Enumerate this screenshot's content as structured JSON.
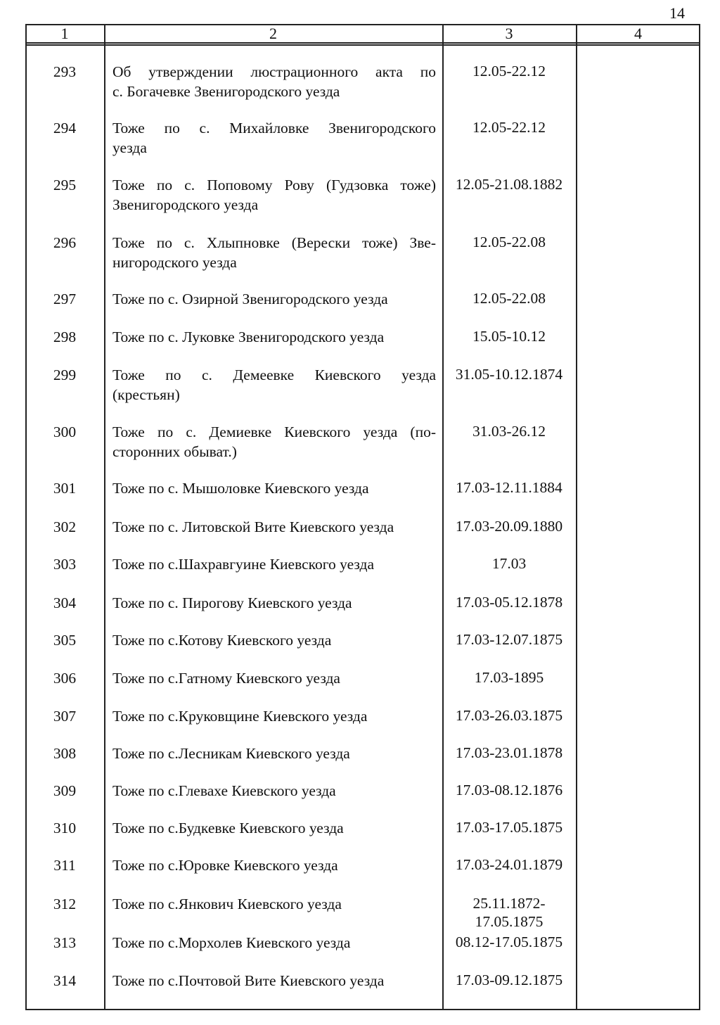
{
  "page_number": "14",
  "table": {
    "headers": [
      "1",
      "2",
      "3",
      "4"
    ],
    "rows": [
      {
        "num": "293",
        "desc": [
          "Об утверждении люстрационного акта по",
          "с. Богачевке Звенигородского уезда"
        ],
        "dates": [
          "12.05-22.12"
        ],
        "note": ""
      },
      {
        "num": "294",
        "desc": [
          "Тоже по с. Михайловке Звенигородского",
          "уезда"
        ],
        "dates": [
          "12.05-22.12"
        ],
        "note": ""
      },
      {
        "num": "295",
        "desc": [
          "Тоже по с. Поповому Рову (Гудзовка тоже)",
          "Звенигородского уезда"
        ],
        "dates": [
          "12.05-21.08.1882"
        ],
        "note": ""
      },
      {
        "num": "296",
        "desc": [
          "Тоже по с. Хлыпновке (Верески тоже) Зве-",
          "нигородского уезда"
        ],
        "dates": [
          "12.05-22.08"
        ],
        "note": ""
      },
      {
        "num": "297",
        "desc": [
          "Тоже по с. Озирной Звенигородского уезда"
        ],
        "dates": [
          "12.05-22.08"
        ],
        "note": ""
      },
      {
        "num": "298",
        "desc": [
          "Тоже по с. Луковке Звенигородского уезда"
        ],
        "dates": [
          "15.05-10.12"
        ],
        "note": ""
      },
      {
        "num": "299",
        "desc": [
          "Тоже по с. Демеевке Киевского уезда",
          "(крестьян)"
        ],
        "dates": [
          "31.05-10.12.1874"
        ],
        "note": ""
      },
      {
        "num": "300",
        "desc": [
          "Тоже по с. Демиевке Киевского уезда (по-",
          "сторонних обыват.)"
        ],
        "dates": [
          "31.03-26.12"
        ],
        "note": ""
      },
      {
        "num": "301",
        "desc": [
          "Тоже по с. Мышоловке Киевского уезда"
        ],
        "dates": [
          "17.03-12.11.1884"
        ],
        "note": ""
      },
      {
        "num": "302",
        "desc": [
          "Тоже по с. Литовской Вите Киевского уезда"
        ],
        "dates": [
          "17.03-20.09.1880"
        ],
        "note": ""
      },
      {
        "num": "303",
        "desc": [
          "Тоже по с.Шахравгуине Киевского уезда"
        ],
        "dates": [
          "17.03"
        ],
        "note": ""
      },
      {
        "num": "304",
        "desc": [
          "Тоже по с. Пирогову Киевского уезда"
        ],
        "dates": [
          "17.03-05.12.1878"
        ],
        "note": ""
      },
      {
        "num": "305",
        "desc": [
          "Тоже по с.Котову Киевского уезда"
        ],
        "dates": [
          "17.03-12.07.1875"
        ],
        "note": ""
      },
      {
        "num": "306",
        "desc": [
          "Тоже по с.Гатному Киевского уезда"
        ],
        "dates": [
          "17.03-1895"
        ],
        "note": ""
      },
      {
        "num": "307",
        "desc": [
          "Тоже по с.Круковщине Киевского уезда"
        ],
        "dates": [
          "17.03-26.03.1875"
        ],
        "note": ""
      },
      {
        "num": "308",
        "desc": [
          "Тоже по с.Лесникам Киевского уезда"
        ],
        "dates": [
          "17.03-23.01.1878"
        ],
        "note": ""
      },
      {
        "num": "309",
        "desc": [
          "Тоже по с.Глевахе Киевского уезда"
        ],
        "dates": [
          "17.03-08.12.1876"
        ],
        "note": ""
      },
      {
        "num": "310",
        "desc": [
          "Тоже по с.Будкевке Киевского уезда"
        ],
        "dates": [
          "17.03-17.05.1875"
        ],
        "note": ""
      },
      {
        "num": "311",
        "desc": [
          "Тоже по с.Юровке Киевского уезда"
        ],
        "dates": [
          "17.03-24.01.1879"
        ],
        "note": ""
      },
      {
        "num": "312",
        "desc": [
          "Тоже по с.Янкович Киевского уезда"
        ],
        "dates": [
          "25.11.1872-",
          "17.05.1875"
        ],
        "note": ""
      },
      {
        "num": "313",
        "desc": [
          "Тоже по с.Морхолев Киевского уезда"
        ],
        "dates": [
          "08.12-17.05.1875"
        ],
        "note": ""
      },
      {
        "num": "314",
        "desc": [
          "Тоже по с.Почтовой Вите Киевского уезда"
        ],
        "dates": [
          "17.03-09.12.1875"
        ],
        "note": ""
      }
    ]
  }
}
